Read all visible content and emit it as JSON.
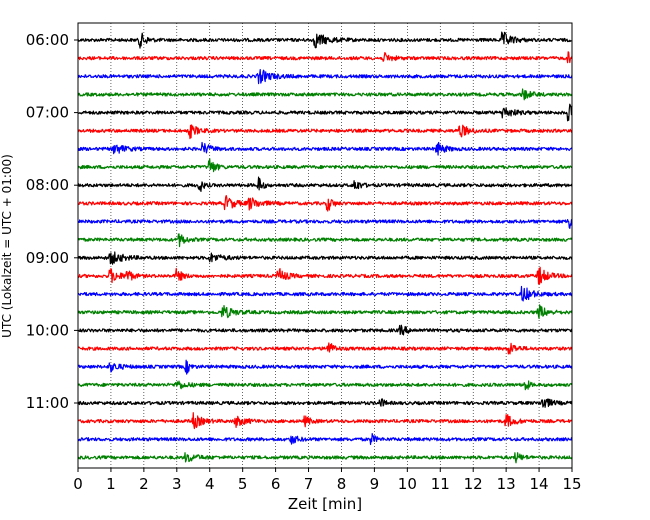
{
  "chart_data": {
    "type": "line",
    "title": "",
    "xlabel": "Zeit  [min]",
    "ylabel": "UTC (Lokalzeit = UTC + 01:00)",
    "xlim": [
      0,
      15
    ],
    "x_ticks": [
      "0",
      "1",
      "2",
      "3",
      "4",
      "5",
      "6",
      "7",
      "8",
      "9",
      "10",
      "11",
      "12",
      "13",
      "14",
      "15"
    ],
    "y_ticks": [
      "06:00",
      "07:00",
      "08:00",
      "09:00",
      "10:00",
      "11:00"
    ],
    "grid": "vertical dotted",
    "trace_interval_min": 15,
    "color_cycle": [
      "#000000",
      "#ff0000",
      "#0000ff",
      "#008000"
    ],
    "series": [
      {
        "start": "06:00",
        "events": [
          1.9,
          7.2,
          12.9
        ]
      },
      {
        "start": "06:15",
        "events": [
          9.3,
          14.9
        ]
      },
      {
        "start": "06:30",
        "events": [
          5.5
        ]
      },
      {
        "start": "06:45",
        "events": [
          13.5
        ]
      },
      {
        "start": "07:00",
        "events": [
          12.9,
          14.9
        ]
      },
      {
        "start": "07:15",
        "events": [
          3.4,
          11.6
        ]
      },
      {
        "start": "07:30",
        "events": [
          1.1,
          3.8,
          10.9
        ]
      },
      {
        "start": "07:45",
        "events": [
          4.0
        ]
      },
      {
        "start": "08:00",
        "events": [
          3.7,
          5.5,
          8.4
        ]
      },
      {
        "start": "08:15",
        "events": [
          4.5,
          5.2,
          7.6
        ]
      },
      {
        "start": "08:30",
        "events": [
          14.9
        ]
      },
      {
        "start": "08:45",
        "events": [
          3.1
        ]
      },
      {
        "start": "09:00",
        "events": [
          1.0,
          4.0
        ]
      },
      {
        "start": "09:15",
        "events": [
          1.0,
          1.5,
          3.0,
          6.1,
          14.0
        ]
      },
      {
        "start": "09:30",
        "events": [
          13.5
        ]
      },
      {
        "start": "09:45",
        "events": [
          4.4,
          14.0
        ]
      },
      {
        "start": "10:00",
        "events": [
          9.8
        ]
      },
      {
        "start": "10:15",
        "events": [
          7.6,
          13.1
        ]
      },
      {
        "start": "10:30",
        "events": [
          1.0,
          3.3
        ]
      },
      {
        "start": "10:45",
        "events": [
          3.0,
          13.6
        ]
      },
      {
        "start": "11:00",
        "events": [
          9.2,
          14.1
        ]
      },
      {
        "start": "11:15",
        "events": [
          3.5,
          4.8,
          6.9,
          13.0
        ]
      },
      {
        "start": "11:30",
        "events": [
          6.5,
          8.9
        ]
      },
      {
        "start": "11:45",
        "events": [
          3.3,
          13.3
        ]
      }
    ]
  }
}
